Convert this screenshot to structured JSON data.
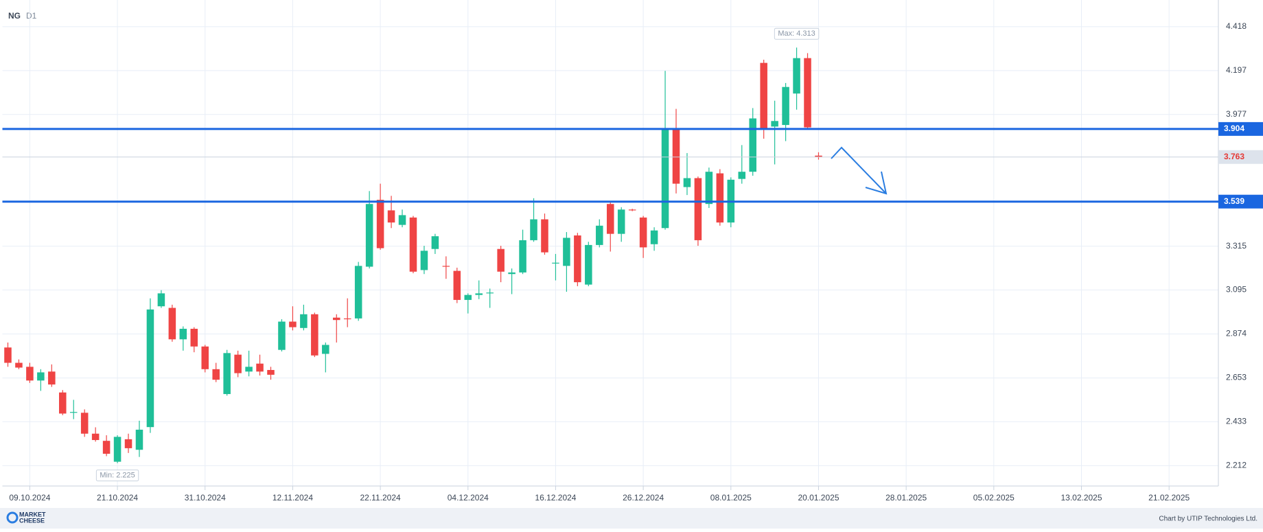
{
  "chart_data": {
    "type": "candlestick",
    "title": "NG",
    "subtitle": "D1",
    "categories": [
      null,
      null,
      "09.10.2024",
      null,
      null,
      null,
      null,
      null,
      null,
      null,
      "21.10.2024",
      null,
      null,
      null,
      null,
      null,
      null,
      null,
      "31.10.2024",
      null,
      null,
      null,
      null,
      null,
      null,
      null,
      "12.11.2024",
      null,
      null,
      null,
      null,
      null,
      null,
      null,
      "22.11.2024",
      null,
      null,
      null,
      null,
      null,
      null,
      null,
      "04.12.2024",
      null,
      null,
      null,
      null,
      null,
      null,
      null,
      "16.12.2024",
      null,
      null,
      null,
      null,
      null,
      null,
      null,
      "26.12.2024",
      null,
      null,
      null,
      null,
      null,
      null,
      null,
      "08.01.2025",
      null,
      null,
      null,
      null,
      null,
      null,
      null,
      "20.01.2025",
      null,
      null,
      null,
      null,
      null,
      null,
      null,
      "28.01.2025",
      null,
      null,
      null,
      null,
      null,
      null,
      null,
      "05.02.2025",
      null,
      null,
      null,
      null,
      null,
      null,
      null,
      "13.02.2025",
      null,
      null,
      null,
      null,
      null,
      null,
      null,
      "21.02.2025",
      null,
      null,
      null,
      null
    ],
    "open": [
      2.806,
      2.729,
      2.709,
      2.64,
      2.685,
      2.58,
      2.478,
      2.478,
      2.373,
      2.337,
      2.232,
      2.345,
      2.292,
      2.406,
      3.013,
      3.005,
      2.847,
      2.9,
      2.811,
      2.697,
      2.572,
      2.77,
      2.685,
      2.725,
      2.693,
      2.794,
      2.936,
      2.904,
      2.973,
      2.774,
      2.956,
      2.952,
      2.952,
      3.212,
      3.548,
      3.495,
      3.422,
      3.459,
      3.195,
      3.301,
      3.216,
      3.191,
      3.045,
      3.07,
      3.078,
      3.301,
      3.175,
      3.183,
      3.345,
      3.45,
      3.228,
      3.216,
      3.369,
      3.122,
      3.321,
      3.527,
      3.377,
      3.499,
      3.459,
      3.325,
      3.406,
      3.904,
      3.612,
      3.657,
      3.527,
      3.681,
      3.434,
      3.653,
      3.689,
      4.236,
      3.916,
      3.924,
      4.082,
      4.26,
      3.77,
      null,
      null,
      null,
      null,
      null,
      null,
      null,
      null,
      null,
      null,
      null,
      null,
      null,
      null,
      null,
      null,
      null,
      null,
      null,
      null,
      null,
      null,
      null,
      null,
      null,
      null,
      null,
      null,
      null,
      null,
      null,
      null,
      null,
      null,
      null,
      null
    ],
    "high": [
      2.831,
      2.746,
      2.729,
      2.697,
      2.721,
      2.592,
      2.543,
      2.495,
      2.405,
      2.365,
      2.365,
      2.373,
      2.438,
      3.053,
      3.094,
      3.021,
      2.912,
      2.908,
      2.819,
      2.729,
      2.794,
      2.79,
      2.79,
      2.77,
      2.709,
      2.948,
      3.013,
      3.021,
      2.981,
      2.831,
      2.973,
      3.053,
      3.236,
      3.592,
      3.629,
      3.568,
      3.499,
      3.467,
      3.317,
      3.377,
      3.264,
      3.207,
      3.078,
      3.143,
      3.102,
      3.317,
      3.203,
      3.398,
      3.556,
      3.479,
      3.276,
      3.386,
      3.382,
      3.337,
      3.45,
      3.535,
      3.511,
      3.503,
      3.467,
      3.41,
      4.196,
      4.005,
      3.783,
      3.665,
      3.71,
      3.702,
      3.661,
      3.823,
      4.009,
      4.252,
      4.046,
      4.135,
      4.313,
      4.285,
      3.787,
      null,
      null,
      null,
      null,
      null,
      null,
      null,
      null,
      null,
      null,
      null,
      null,
      null,
      null,
      null,
      null,
      null,
      null,
      null,
      null,
      null,
      null,
      null,
      null,
      null,
      null,
      null,
      null,
      null,
      null,
      null,
      null,
      null,
      null,
      null,
      null
    ],
    "low": [
      2.709,
      2.697,
      2.628,
      2.588,
      2.608,
      2.466,
      2.446,
      2.357,
      2.333,
      2.26,
      2.225,
      2.276,
      2.256,
      2.377,
      3.005,
      2.835,
      2.79,
      2.782,
      2.681,
      2.632,
      2.564,
      2.657,
      2.661,
      2.665,
      2.644,
      2.786,
      2.892,
      2.892,
      2.758,
      2.681,
      2.831,
      2.908,
      2.94,
      3.203,
      3.297,
      3.406,
      3.41,
      3.179,
      3.175,
      3.276,
      3.151,
      3.029,
      2.977,
      3.049,
      3.005,
      3.134,
      3.074,
      3.175,
      3.337,
      3.272,
      3.143,
      3.086,
      3.114,
      3.114,
      3.309,
      3.288,
      3.337,
      3.491,
      3.256,
      3.292,
      3.398,
      3.58,
      3.572,
      3.317,
      3.507,
      3.418,
      3.41,
      3.629,
      3.669,
      3.855,
      3.726,
      3.843,
      4.001,
      3.904,
      3.75,
      null,
      null,
      null,
      null,
      null,
      null,
      null,
      null,
      null,
      null,
      null,
      null,
      null,
      null,
      null,
      null,
      null,
      null,
      null,
      null,
      null,
      null,
      null,
      null,
      null,
      null,
      null,
      null,
      null,
      null,
      null,
      null,
      null,
      null,
      null,
      null
    ],
    "close": [
      2.729,
      2.705,
      2.64,
      2.681,
      2.62,
      2.474,
      2.482,
      2.373,
      2.341,
      2.272,
      2.357,
      2.3,
      2.393,
      2.997,
      3.078,
      2.847,
      2.9,
      2.811,
      2.697,
      2.644,
      2.778,
      2.677,
      2.709,
      2.685,
      2.669,
      2.936,
      2.908,
      2.973,
      2.766,
      2.819,
      2.944,
      2.948,
      3.216,
      3.527,
      3.305,
      3.434,
      3.471,
      3.187,
      3.292,
      3.365,
      3.212,
      3.045,
      3.07,
      3.078,
      3.082,
      3.187,
      3.183,
      3.345,
      3.45,
      3.284,
      3.232,
      3.357,
      3.134,
      3.321,
      3.418,
      3.377,
      3.499,
      3.495,
      3.309,
      3.394,
      3.904,
      3.629,
      3.657,
      3.345,
      3.689,
      3.434,
      3.649,
      3.689,
      3.957,
      3.904,
      3.944,
      4.115,
      4.26,
      3.912,
      3.763,
      null,
      null,
      null,
      null,
      null,
      null,
      null,
      null,
      null,
      null,
      null,
      null,
      null,
      null,
      null,
      null,
      null,
      null,
      null,
      null,
      null,
      null,
      null,
      null,
      null,
      null,
      null,
      null,
      null,
      null,
      null,
      null,
      null,
      null,
      null,
      null
    ],
    "up_color": "#1fbf98",
    "down_color": "#ef4444",
    "ylim": [
      2.11,
      4.552
    ],
    "yticks": [
      2.212,
      2.433,
      2.653,
      2.874,
      3.095,
      3.315,
      3.977,
      4.197,
      4.418
    ],
    "grid": true,
    "levels": [
      3.904,
      3.539
    ],
    "level_color": "#1a66e0",
    "max_label": "Max: 4.313",
    "min_label": "Min: 2.225"
  },
  "footer": {
    "logo": [
      "MARKET",
      "CHEESE"
    ],
    "credit": "Chart by UTIP Technologies Ltd."
  }
}
